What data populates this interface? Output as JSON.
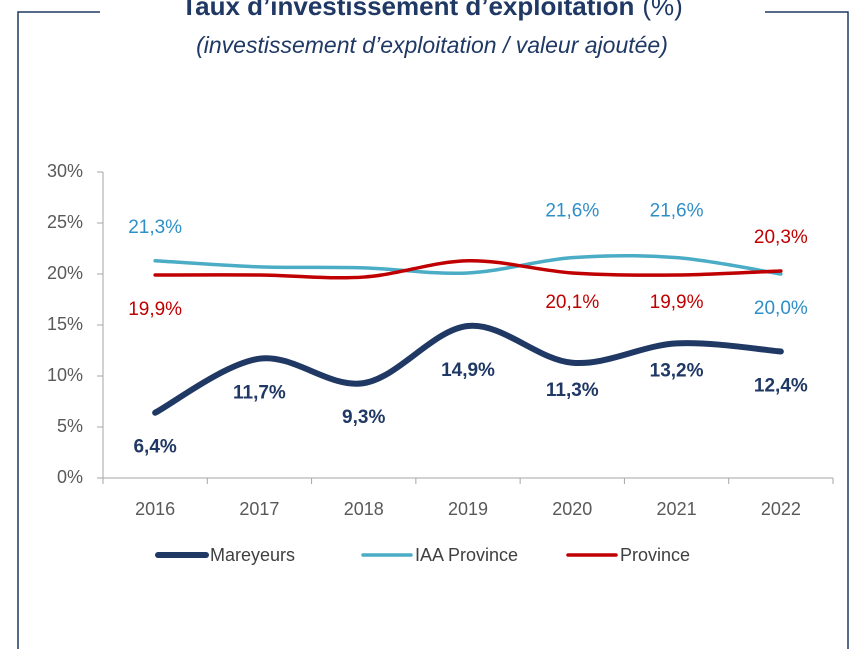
{
  "chart_data": {
    "type": "line",
    "title": "Taux d’investissement d’exploitation",
    "title_unit": "(%)",
    "subtitle": "(investissement d’exploitation / valeur ajoutée)",
    "categories": [
      "2016",
      "2017",
      "2018",
      "2019",
      "2020",
      "2021",
      "2022"
    ],
    "series": [
      {
        "name": "Mareyeurs",
        "color": "#1f3864",
        "values": [
          6.4,
          11.7,
          9.3,
          14.9,
          11.3,
          13.2,
          12.4
        ],
        "value_labels": [
          "6,4%",
          "11,7%",
          "9,3%",
          "14,9%",
          "11,3%",
          "13,2%",
          "12,4%"
        ]
      },
      {
        "name": "IAA Province",
        "color": "#4bacc6",
        "values": [
          21.3,
          20.7,
          20.6,
          20.1,
          21.6,
          21.6,
          20.0
        ],
        "value_labels": [
          "21,3%",
          null,
          null,
          null,
          "21,6%",
          "21,6%",
          "20,0%"
        ]
      },
      {
        "name": "Province",
        "color": "#c00000",
        "values": [
          19.9,
          19.9,
          19.7,
          21.3,
          20.1,
          19.9,
          20.3
        ],
        "value_labels": [
          "19,9%",
          null,
          null,
          null,
          "20,1%",
          "19,9%",
          "20,3%"
        ]
      }
    ],
    "ylim": [
      0,
      30
    ],
    "yticks": [
      {
        "value": 0,
        "label": "0%"
      },
      {
        "value": 5,
        "label": "5%"
      },
      {
        "value": 10,
        "label": "10%"
      },
      {
        "value": 15,
        "label": "15%"
      },
      {
        "value": 20,
        "label": "20%"
      },
      {
        "value": 25,
        "label": "25%"
      },
      {
        "value": 30,
        "label": "30%"
      }
    ],
    "grid": false,
    "legend": "bottom"
  }
}
